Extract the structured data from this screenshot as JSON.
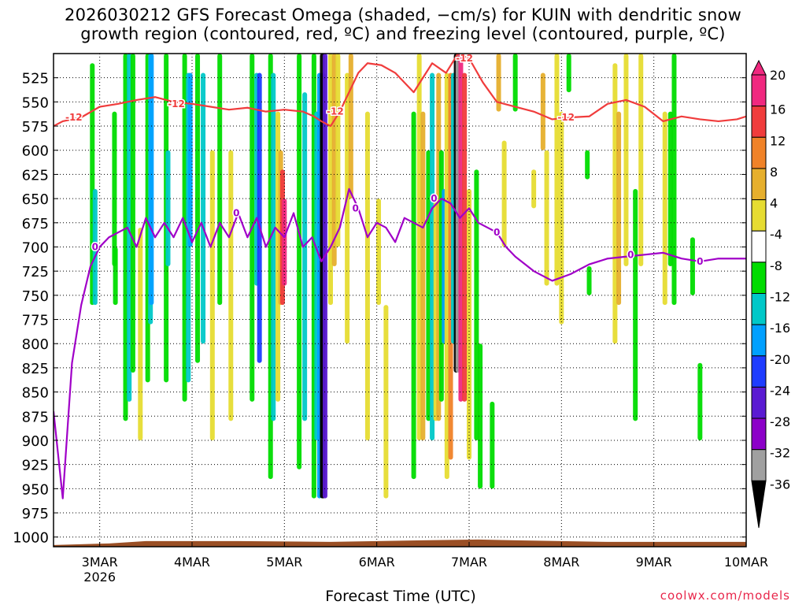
{
  "header": {
    "title_line1": "2026030212 GFS Forecast Omega (shaded, −cm/s) for KUIN with dendritic snow",
    "title_line2": "growth region (contoured, red, ºC) and freezing level (contoured, purple, ºC)"
  },
  "credit": "coolwx.com/models",
  "colors": {
    "omega_neg_36": "#000000",
    "omega_neg_32": "#a0a0a0",
    "omega_neg_28": "#8c00c8",
    "omega_neg_24": "#5a1ad2",
    "omega_neg_20": "#1e3cff",
    "omega_neg_16": "#00a0ff",
    "omega_neg_12": "#00c8c8",
    "omega_neg_8": "#00dc00",
    "omega_pos_4": "#e6dc32",
    "omega_pos_8": "#e6af2d",
    "omega_pos_12": "#f08228",
    "omega_pos_16": "#f03c3c",
    "omega_pos_20": "#f0287f",
    "dgz_contour": "#f03c3c",
    "freezing_contour": "#a000c8",
    "terrain": "#9a4f25"
  },
  "chart_data": {
    "type": "heatmap",
    "title": "2026030212 GFS Forecast Omega (shaded, −cm/s) for KUIN with dendritic snow growth region (contoured, red, ºC) and freezing level (contoured, purple, ºC)",
    "xlabel": "Forecast Time (UTC)",
    "ylabel": "",
    "x_ticks": [
      {
        "label": "3MAR",
        "sublabel": "2026",
        "t": 0.5
      },
      {
        "label": "4MAR",
        "t": 1.5
      },
      {
        "label": "5MAR",
        "t": 2.5
      },
      {
        "label": "6MAR",
        "t": 3.5
      },
      {
        "label": "7MAR",
        "t": 4.5
      },
      {
        "label": "8MAR",
        "t": 5.5
      },
      {
        "label": "9MAR",
        "t": 6.5
      },
      {
        "label": "10MAR",
        "t": 7.5
      }
    ],
    "xlim_days_from_2026030212": [
      0,
      7.5
    ],
    "y_ticks_hPa": [
      525,
      550,
      575,
      600,
      625,
      650,
      675,
      700,
      725,
      750,
      775,
      800,
      825,
      850,
      875,
      900,
      925,
      950,
      975,
      1000
    ],
    "ylim_hPa": [
      500,
      1010
    ],
    "grid": "dotted",
    "colorbar": {
      "tick_labels": [
        "20",
        "16",
        "12",
        "8",
        "4",
        "-4",
        "-8",
        "-12",
        "-16",
        "-20",
        "-24",
        "-28",
        "-32",
        "-36"
      ],
      "bins": [
        {
          "range": [
            20,
            24
          ],
          "color": "#f0287f"
        },
        {
          "range": [
            16,
            20
          ],
          "color": "#f03c3c"
        },
        {
          "range": [
            12,
            16
          ],
          "color": "#f08228"
        },
        {
          "range": [
            8,
            12
          ],
          "color": "#e6af2d"
        },
        {
          "range": [
            4,
            8
          ],
          "color": "#e6dc32"
        },
        {
          "range": [
            -4,
            4
          ],
          "color": "#ffffff"
        },
        {
          "range": [
            -8,
            -4
          ],
          "color": "#00dc00"
        },
        {
          "range": [
            -12,
            -8
          ],
          "color": "#00c8c8"
        },
        {
          "range": [
            -16,
            -12
          ],
          "color": "#00a0ff"
        },
        {
          "range": [
            -20,
            -16
          ],
          "color": "#1e3cff"
        },
        {
          "range": [
            -24,
            -20
          ],
          "color": "#5a1ad2"
        },
        {
          "range": [
            -28,
            -24
          ],
          "color": "#8c00c8"
        },
        {
          "range": [
            -32,
            -28
          ],
          "color": "#a0a0a0"
        },
        {
          "range": [
            -36,
            -32
          ],
          "color": "#000000"
        }
      ]
    },
    "omega_columns": [
      {
        "t": 0.42,
        "p": [
          510,
          760
        ],
        "level": "neg_8"
      },
      {
        "t": 0.45,
        "p": [
          640,
          760
        ],
        "level": "neg_12"
      },
      {
        "t": 0.66,
        "p": [
          560,
          720
        ],
        "level": "neg_8"
      },
      {
        "t": 0.67,
        "p": [
          700,
          760
        ],
        "level": "neg_8"
      },
      {
        "t": 0.78,
        "p": [
          500,
          880
        ],
        "level": "neg_8"
      },
      {
        "t": 0.82,
        "p": [
          500,
          860
        ],
        "level": "neg_12"
      },
      {
        "t": 0.86,
        "p": [
          500,
          830
        ],
        "level": "neg_8"
      },
      {
        "t": 0.94,
        "p": [
          680,
          900
        ],
        "level": "pos_4"
      },
      {
        "t": 1.02,
        "p": [
          500,
          840
        ],
        "level": "neg_8"
      },
      {
        "t": 1.05,
        "p": [
          500,
          780
        ],
        "level": "neg_12"
      },
      {
        "t": 1.06,
        "p": [
          500,
          760
        ],
        "level": "neg_16"
      },
      {
        "t": 1.22,
        "p": [
          500,
          840
        ],
        "level": "neg_8"
      },
      {
        "t": 1.24,
        "p": [
          600,
          720
        ],
        "level": "neg_12"
      },
      {
        "t": 1.42,
        "p": [
          500,
          860
        ],
        "level": "neg_8"
      },
      {
        "t": 1.46,
        "p": [
          520,
          840
        ],
        "level": "neg_12"
      },
      {
        "t": 1.48,
        "p": [
          520,
          700
        ],
        "level": "neg_16"
      },
      {
        "t": 1.56,
        "p": [
          500,
          820
        ],
        "level": "neg_8"
      },
      {
        "t": 1.62,
        "p": [
          520,
          800
        ],
        "level": "neg_12"
      },
      {
        "t": 1.72,
        "p": [
          600,
          900
        ],
        "level": "pos_4"
      },
      {
        "t": 1.8,
        "p": [
          500,
          760
        ],
        "level": "neg_8"
      },
      {
        "t": 1.92,
        "p": [
          600,
          880
        ],
        "level": "pos_4"
      },
      {
        "t": 2.15,
        "p": [
          500,
          860
        ],
        "level": "neg_8"
      },
      {
        "t": 2.2,
        "p": [
          520,
          740
        ],
        "level": "neg_12"
      },
      {
        "t": 2.23,
        "p": [
          520,
          820
        ],
        "level": "neg_20"
      },
      {
        "t": 2.35,
        "p": [
          500,
          940
        ],
        "level": "neg_8"
      },
      {
        "t": 2.38,
        "p": [
          520,
          880
        ],
        "level": "neg_12"
      },
      {
        "t": 2.43,
        "p": [
          560,
          860
        ],
        "level": "pos_4"
      },
      {
        "t": 2.46,
        "p": [
          600,
          760
        ],
        "level": "pos_8"
      },
      {
        "t": 2.48,
        "p": [
          620,
          760
        ],
        "level": "pos_16"
      },
      {
        "t": 2.5,
        "p": [
          650,
          740
        ],
        "level": "pos_20"
      },
      {
        "t": 2.66,
        "p": [
          500,
          930
        ],
        "level": "neg_8"
      },
      {
        "t": 2.72,
        "p": [
          540,
          880
        ],
        "level": "neg_12"
      },
      {
        "t": 2.82,
        "p": [
          500,
          960
        ],
        "level": "neg_8"
      },
      {
        "t": 2.85,
        "p": [
          560,
          900
        ],
        "level": "neg_12"
      },
      {
        "t": 2.88,
        "p": [
          520,
          960
        ],
        "level": "neg_16"
      },
      {
        "t": 2.91,
        "p": [
          500,
          960
        ],
        "level": "neg_36"
      },
      {
        "t": 2.92,
        "p": [
          520,
          960
        ],
        "level": "neg_36"
      },
      {
        "t": 2.94,
        "p": [
          500,
          960
        ],
        "level": "neg_24"
      },
      {
        "t": 3.0,
        "p": [
          500,
          760
        ],
        "level": "pos_4"
      },
      {
        "t": 3.04,
        "p": [
          500,
          720
        ],
        "level": "pos_8"
      },
      {
        "t": 3.08,
        "p": [
          500,
          700
        ],
        "level": "pos_4"
      },
      {
        "t": 3.18,
        "p": [
          520,
          800
        ],
        "level": "pos_4"
      },
      {
        "t": 3.22,
        "p": [
          500,
          650
        ],
        "level": "pos_8"
      },
      {
        "t": 3.4,
        "p": [
          560,
          900
        ],
        "level": "pos_4"
      },
      {
        "t": 3.52,
        "p": [
          650,
          760
        ],
        "level": "pos_4"
      },
      {
        "t": 3.6,
        "p": [
          760,
          960
        ],
        "level": "pos_4"
      },
      {
        "t": 3.9,
        "p": [
          560,
          940
        ],
        "level": "neg_8"
      },
      {
        "t": 3.96,
        "p": [
          500,
          900
        ],
        "level": "pos_4"
      },
      {
        "t": 4.0,
        "p": [
          560,
          900
        ],
        "level": "pos_8"
      },
      {
        "t": 4.06,
        "p": [
          600,
          880
        ],
        "level": "neg_8"
      },
      {
        "t": 4.1,
        "p": [
          520,
          900
        ],
        "level": "neg_12"
      },
      {
        "t": 4.14,
        "p": [
          650,
          880
        ],
        "level": "pos_4"
      },
      {
        "t": 4.17,
        "p": [
          520,
          880
        ],
        "level": "pos_8"
      },
      {
        "t": 4.2,
        "p": [
          600,
          860
        ],
        "level": "neg_8"
      },
      {
        "t": 4.23,
        "p": [
          640,
          800
        ],
        "level": "neg_16"
      },
      {
        "t": 4.26,
        "p": [
          520,
          940
        ],
        "level": "pos_4"
      },
      {
        "t": 4.3,
        "p": [
          520,
          920
        ],
        "level": "pos_12"
      },
      {
        "t": 4.33,
        "p": [
          520,
          800
        ],
        "level": "neg_12"
      },
      {
        "t": 4.36,
        "p": [
          500,
          830
        ],
        "level": "neg_36"
      },
      {
        "t": 4.38,
        "p": [
          500,
          830
        ],
        "level": "neg_32"
      },
      {
        "t": 4.41,
        "p": [
          500,
          860
        ],
        "level": "pos_20"
      },
      {
        "t": 4.45,
        "p": [
          520,
          860
        ],
        "level": "pos_16"
      },
      {
        "t": 4.5,
        "p": [
          640,
          920
        ],
        "level": "pos_4"
      },
      {
        "t": 4.58,
        "p": [
          620,
          900
        ],
        "level": "neg_8"
      },
      {
        "t": 4.62,
        "p": [
          800,
          950
        ],
        "level": "neg_8"
      },
      {
        "t": 4.75,
        "p": [
          860,
          950
        ],
        "level": "neg_8"
      },
      {
        "t": 4.82,
        "p": [
          500,
          560
        ],
        "level": "pos_8"
      },
      {
        "t": 4.88,
        "p": [
          590,
          700
        ],
        "level": "pos_4"
      },
      {
        "t": 5.0,
        "p": [
          500,
          560
        ],
        "level": "neg_8"
      },
      {
        "t": 5.2,
        "p": [
          620,
          660
        ],
        "level": "pos_4"
      },
      {
        "t": 5.3,
        "p": [
          520,
          600
        ],
        "level": "pos_8"
      },
      {
        "t": 5.34,
        "p": [
          600,
          740
        ],
        "level": "pos_4"
      },
      {
        "t": 5.45,
        "p": [
          500,
          740
        ],
        "level": "pos_4"
      },
      {
        "t": 5.5,
        "p": [
          560,
          780
        ],
        "level": "pos_4"
      },
      {
        "t": 5.58,
        "p": [
          500,
          540
        ],
        "level": "neg_8"
      },
      {
        "t": 5.78,
        "p": [
          600,
          630
        ],
        "level": "neg_8"
      },
      {
        "t": 5.8,
        "p": [
          720,
          750
        ],
        "level": "neg_8"
      },
      {
        "t": 6.08,
        "p": [
          510,
          800
        ],
        "level": "pos_4"
      },
      {
        "t": 6.12,
        "p": [
          560,
          760
        ],
        "level": "pos_8"
      },
      {
        "t": 6.2,
        "p": [
          500,
          720
        ],
        "level": "pos_4"
      },
      {
        "t": 6.3,
        "p": [
          640,
          880
        ],
        "level": "neg_8"
      },
      {
        "t": 6.36,
        "p": [
          500,
          720
        ],
        "level": "pos_4"
      },
      {
        "t": 6.62,
        "p": [
          560,
          760
        ],
        "level": "pos_4"
      },
      {
        "t": 6.68,
        "p": [
          560,
          720
        ],
        "level": "neg_8"
      },
      {
        "t": 6.72,
        "p": [
          500,
          760
        ],
        "level": "neg_8"
      },
      {
        "t": 6.92,
        "p": [
          690,
          750
        ],
        "level": "neg_8"
      },
      {
        "t": 7.0,
        "p": [
          820,
          900
        ],
        "level": "neg_8"
      }
    ],
    "dgz_minus12_contour": {
      "label": "-12",
      "t": [
        0,
        0.1,
        0.2,
        0.3,
        0.5,
        0.7,
        0.9,
        1.1,
        1.3,
        1.5,
        1.7,
        1.9,
        2.1,
        2.3,
        2.5,
        2.7,
        2.82,
        2.9,
        3.0,
        3.1,
        3.2,
        3.3,
        3.4,
        3.55,
        3.7,
        3.9,
        4.1,
        4.25,
        4.38,
        4.5,
        4.65,
        4.8,
        5.0,
        5.2,
        5.4,
        5.6,
        5.8,
        6.0,
        6.2,
        6.4,
        6.6,
        6.8,
        7.0,
        7.2,
        7.4,
        7.5
      ],
      "p": [
        575,
        570,
        568,
        566,
        555,
        552,
        548,
        545,
        550,
        552,
        555,
        558,
        556,
        560,
        558,
        560,
        565,
        570,
        575,
        560,
        540,
        520,
        510,
        512,
        520,
        540,
        510,
        520,
        500,
        505,
        530,
        550,
        555,
        560,
        568,
        566,
        565,
        552,
        548,
        555,
        570,
        565,
        568,
        570,
        568,
        565
      ]
    },
    "freezing_0C_contour": {
      "label": "0",
      "t": [
        0,
        0.1,
        0.2,
        0.3,
        0.4,
        0.5,
        0.6,
        0.7,
        0.8,
        0.9,
        1.0,
        1.1,
        1.2,
        1.3,
        1.4,
        1.5,
        1.6,
        1.7,
        1.8,
        1.9,
        2.0,
        2.1,
        2.2,
        2.3,
        2.4,
        2.5,
        2.6,
        2.7,
        2.8,
        2.9,
        3.0,
        3.1,
        3.2,
        3.3,
        3.4,
        3.5,
        3.6,
        3.7,
        3.8,
        3.9,
        4.0,
        4.1,
        4.2,
        4.3,
        4.4,
        4.5,
        4.6,
        4.7,
        4.8,
        4.9,
        5.0,
        5.2,
        5.4,
        5.6,
        5.8,
        6.0,
        6.2,
        6.4,
        6.6,
        6.8,
        7.0,
        7.2,
        7.4,
        7.5
      ],
      "p": [
        870,
        960,
        820,
        760,
        720,
        700,
        690,
        685,
        680,
        700,
        670,
        690,
        675,
        690,
        670,
        695,
        675,
        700,
        675,
        690,
        665,
        690,
        670,
        700,
        680,
        690,
        665,
        700,
        690,
        715,
        700,
        680,
        640,
        660,
        690,
        675,
        680,
        695,
        670,
        675,
        680,
        660,
        650,
        655,
        670,
        660,
        675,
        680,
        685,
        700,
        710,
        725,
        735,
        728,
        718,
        712,
        710,
        708,
        706,
        712,
        715,
        712,
        712,
        712
      ]
    },
    "annotations": [
      "-12",
      "-12",
      "-12",
      "-12",
      "-12",
      "0",
      "0",
      "0",
      "0",
      "0",
      "0",
      "0"
    ],
    "terrain_hPa": 1005
  },
  "axis": {
    "x_title": "Forecast Time (UTC)"
  }
}
